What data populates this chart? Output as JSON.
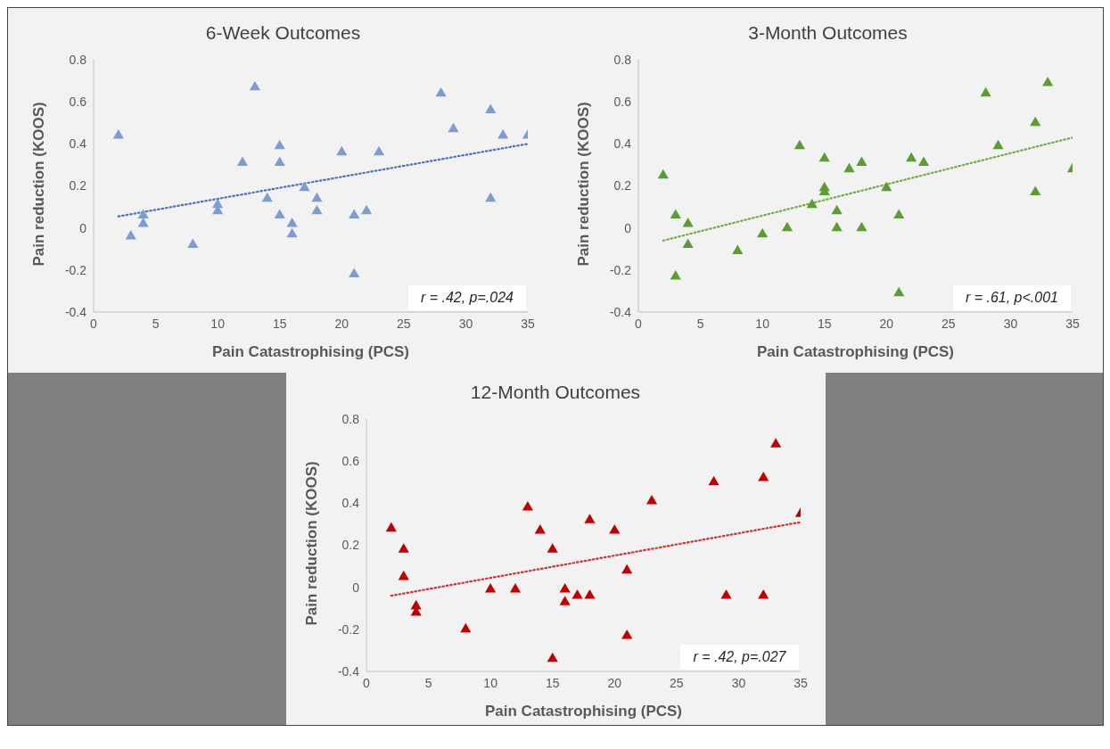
{
  "chart_data": [
    {
      "type": "scatter",
      "title": "6-Week Outcomes",
      "xlabel": "Pain Catastrophising (PCS)",
      "ylabel": "Pain reduction (KOOS)",
      "xlim": [
        0,
        35
      ],
      "xticks": [
        0,
        5,
        10,
        15,
        20,
        25,
        30,
        35
      ],
      "ylim": [
        -0.4,
        0.8
      ],
      "yticks": [
        -0.4,
        -0.2,
        0,
        0.2,
        0.4,
        0.6,
        0.8
      ],
      "grid": false,
      "legend": false,
      "marker": "triangle",
      "annotations": [
        "r = .42, p=.024"
      ],
      "series": [
        {
          "type": "scatter",
          "color": "#7c9cd4",
          "x": [
            2,
            3,
            4,
            4,
            8,
            10,
            10,
            12,
            13,
            14,
            15,
            15,
            15,
            16,
            16,
            17,
            18,
            18,
            20,
            21,
            21,
            22,
            23,
            28,
            29,
            32,
            32,
            33,
            35
          ],
          "values": [
            0.44,
            -0.04,
            0.06,
            0.02,
            -0.08,
            0.11,
            0.08,
            0.31,
            0.67,
            0.14,
            0.39,
            0.31,
            0.06,
            0.02,
            -0.03,
            0.19,
            0.14,
            0.08,
            0.36,
            0.06,
            -0.22,
            0.08,
            0.36,
            0.64,
            0.47,
            0.56,
            0.14,
            0.44,
            0.44
          ]
        },
        {
          "type": "line",
          "color": "#4a72c0",
          "line_style": "dotted",
          "marker": "none",
          "x": [
            2,
            35
          ],
          "values": [
            0.055,
            0.4
          ]
        }
      ]
    },
    {
      "type": "scatter",
      "title": "3-Month Outcomes",
      "xlabel": "Pain Catastrophising (PCS)",
      "ylabel": "Pain reduction (KOOS)",
      "xlim": [
        0,
        35
      ],
      "xticks": [
        0,
        5,
        10,
        15,
        20,
        25,
        30,
        35
      ],
      "ylim": [
        -0.4,
        0.8
      ],
      "yticks": [
        -0.4,
        -0.2,
        0,
        0.2,
        0.4,
        0.6,
        0.8
      ],
      "grid": false,
      "legend": false,
      "marker": "triangle",
      "annotations": [
        "r = .61, p<.001"
      ],
      "series": [
        {
          "type": "scatter",
          "color": "#5a9e32",
          "x": [
            2,
            3,
            3,
            4,
            4,
            8,
            10,
            12,
            13,
            14,
            15,
            15,
            15,
            16,
            16,
            17,
            18,
            18,
            20,
            21,
            21,
            22,
            23,
            28,
            29,
            32,
            32,
            33,
            35
          ],
          "values": [
            0.25,
            0.06,
            -0.23,
            0.02,
            -0.08,
            -0.11,
            -0.03,
            0,
            0.39,
            0.11,
            0.33,
            0.19,
            0.17,
            0.08,
            0,
            0.28,
            0.31,
            0,
            0.19,
            0.06,
            -0.31,
            0.33,
            0.31,
            0.64,
            0.39,
            0.5,
            0.17,
            0.69,
            0.28
          ]
        },
        {
          "type": "line",
          "color": "#70ad47",
          "line_style": "dotted",
          "marker": "none",
          "x": [
            2,
            35
          ],
          "values": [
            -0.06,
            0.43
          ]
        }
      ]
    },
    {
      "type": "scatter",
      "title": "12-Month Outcomes",
      "xlabel": "Pain Catastrophising (PCS)",
      "ylabel": "Pain reduction (KOOS)",
      "xlim": [
        0,
        35
      ],
      "xticks": [
        0,
        5,
        10,
        15,
        20,
        25,
        30,
        35
      ],
      "ylim": [
        -0.4,
        0.8
      ],
      "yticks": [
        -0.4,
        -0.2,
        0,
        0.2,
        0.4,
        0.6,
        0.8
      ],
      "grid": false,
      "legend": false,
      "marker": "triangle",
      "annotations": [
        "r = .42, p=.027"
      ],
      "series": [
        {
          "type": "scatter",
          "color": "#c00000",
          "x": [
            2,
            3,
            3,
            4,
            4,
            8,
            10,
            12,
            13,
            14,
            15,
            15,
            16,
            16,
            17,
            18,
            18,
            20,
            21,
            21,
            23,
            28,
            29,
            32,
            32,
            33,
            35
          ],
          "values": [
            0.28,
            0.18,
            0.05,
            -0.09,
            -0.12,
            -0.2,
            -0.01,
            -0.01,
            0.38,
            0.27,
            0.18,
            -0.34,
            -0.01,
            -0.07,
            -0.04,
            0.32,
            -0.04,
            0.27,
            0.08,
            -0.23,
            0.41,
            0.5,
            -0.04,
            0.52,
            -0.04,
            0.68,
            0.35
          ]
        },
        {
          "type": "line",
          "color": "#d03030",
          "line_style": "dotted",
          "marker": "none",
          "x": [
            2,
            35
          ],
          "values": [
            -0.04,
            0.31
          ]
        }
      ]
    }
  ]
}
